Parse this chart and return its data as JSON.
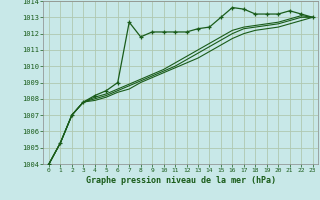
{
  "background_color": "#c8e8e8",
  "grid_color_major": "#b0c8b0",
  "grid_color_minor": "#c8d8c8",
  "line_color": "#1a5c1a",
  "title": "Graphe pression niveau de la mer (hPa)",
  "xlim": [
    -0.5,
    23.5
  ],
  "ylim": [
    1004,
    1014
  ],
  "xticks": [
    0,
    1,
    2,
    3,
    4,
    5,
    6,
    7,
    8,
    9,
    10,
    11,
    12,
    13,
    14,
    15,
    16,
    17,
    18,
    19,
    20,
    21,
    22,
    23
  ],
  "yticks": [
    1004,
    1005,
    1006,
    1007,
    1008,
    1009,
    1010,
    1011,
    1012,
    1013,
    1014
  ],
  "series_marked": [
    1004.0,
    1005.3,
    1007.0,
    1007.8,
    1008.2,
    1008.5,
    1009.0,
    1012.7,
    1011.8,
    1012.1,
    1012.1,
    1012.1,
    1012.1,
    1012.3,
    1012.4,
    1013.0,
    1013.6,
    1013.5,
    1013.2,
    1013.2,
    1013.2,
    1013.4,
    1013.2,
    1013.0
  ],
  "series_smooth": [
    [
      1004.0,
      1005.3,
      1007.0,
      1007.8,
      1008.1,
      1008.3,
      1008.6,
      1008.9,
      1009.2,
      1009.5,
      1009.8,
      1010.2,
      1010.6,
      1011.0,
      1011.4,
      1011.8,
      1012.2,
      1012.4,
      1012.5,
      1012.6,
      1012.7,
      1012.9,
      1013.1,
      1013.0
    ],
    [
      1004.0,
      1005.3,
      1007.0,
      1007.8,
      1008.0,
      1008.2,
      1008.5,
      1008.8,
      1009.1,
      1009.4,
      1009.7,
      1010.0,
      1010.4,
      1010.8,
      1011.2,
      1011.6,
      1012.0,
      1012.3,
      1012.4,
      1012.5,
      1012.6,
      1012.8,
      1013.0,
      1013.0
    ],
    [
      1004.0,
      1005.3,
      1007.0,
      1007.8,
      1007.9,
      1008.1,
      1008.4,
      1008.6,
      1009.0,
      1009.3,
      1009.6,
      1009.9,
      1010.2,
      1010.5,
      1010.9,
      1011.3,
      1011.7,
      1012.0,
      1012.2,
      1012.3,
      1012.4,
      1012.6,
      1012.8,
      1013.0
    ]
  ]
}
